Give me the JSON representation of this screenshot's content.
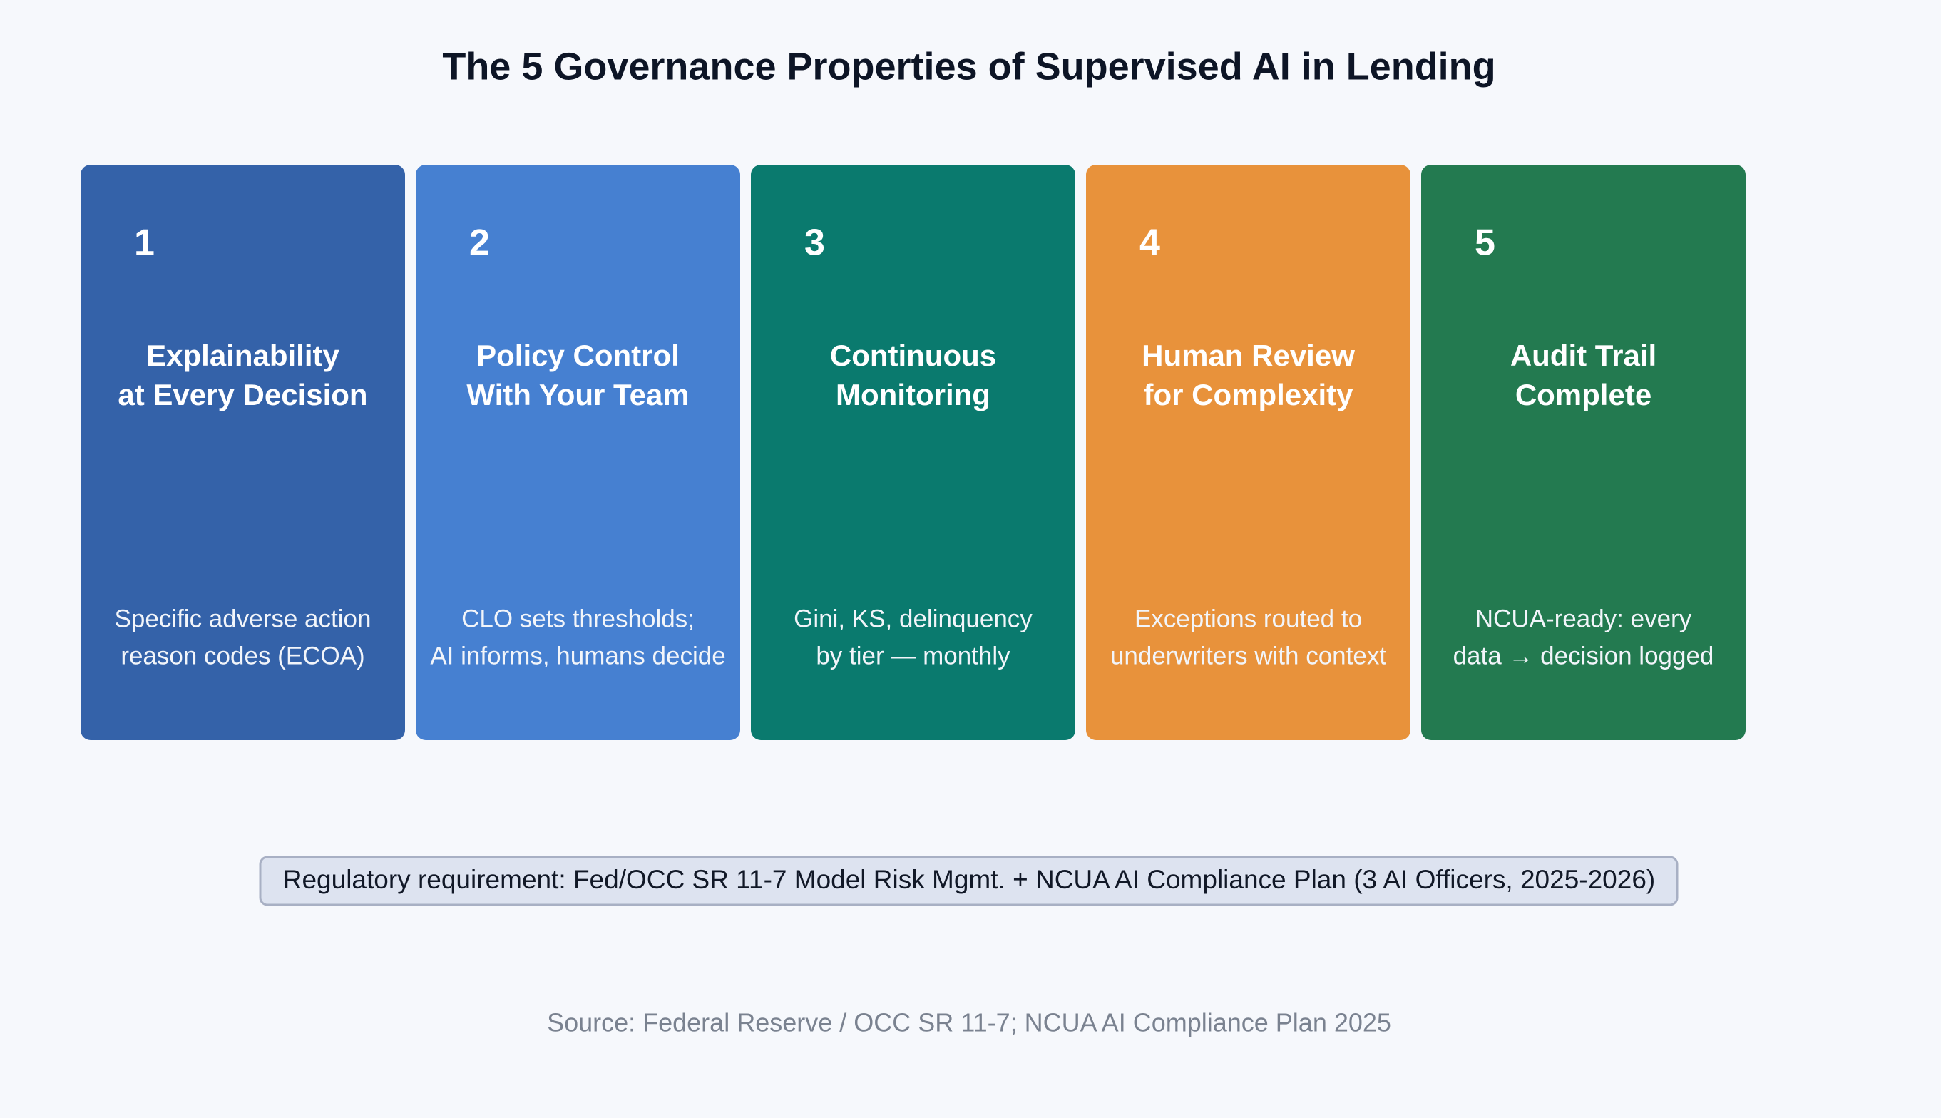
{
  "title": "The 5 Governance Properties of Supervised AI in Lending",
  "cards": [
    {
      "number": "1",
      "heading": [
        "Explainability",
        "at Every Decision"
      ],
      "description": [
        "Specific adverse action",
        "reason codes (ECOA)"
      ],
      "color": "#3462a9"
    },
    {
      "number": "2",
      "heading": [
        "Policy Control",
        "With Your Team"
      ],
      "description": [
        "CLO sets thresholds;",
        "AI informs, humans decide"
      ],
      "color": "#4680d1"
    },
    {
      "number": "3",
      "heading": [
        "Continuous",
        "Monitoring"
      ],
      "description": [
        "Gini, KS, delinquency",
        "by tier — monthly"
      ],
      "color": "#0a7a6e"
    },
    {
      "number": "4",
      "heading": [
        "Human Review",
        "for Complexity"
      ],
      "description": [
        "Exceptions routed to",
        "underwriters with context"
      ],
      "color": "#e8923b"
    },
    {
      "number": "5",
      "heading": [
        "Audit Trail",
        "Complete"
      ],
      "description": [
        "NCUA-ready: every",
        "data → decision logged"
      ],
      "color": "#237a50"
    }
  ],
  "requirement": "Regulatory requirement: Fed/OCC SR 11-7 Model Risk Mgmt. + NCUA AI Compliance Plan (3 AI Officers, 2025-2026)",
  "source": "Source: Federal Reserve / OCC SR 11-7; NCUA AI Compliance Plan 2025"
}
